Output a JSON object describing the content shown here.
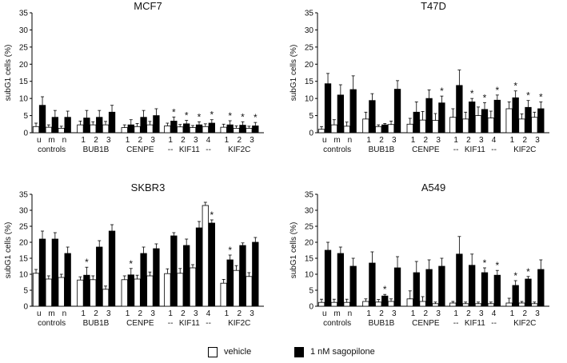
{
  "chart_data": [
    {
      "type": "bar",
      "title": "MCF7",
      "ylabel": "subG1 cells (%)",
      "ylim": [
        0,
        35
      ],
      "yticks": [
        0,
        5,
        10,
        15,
        20,
        25,
        30,
        35
      ],
      "categories": [
        "u",
        "m",
        "n",
        "1",
        "2",
        "3",
        "1",
        "2",
        "3",
        "1",
        "2",
        "3",
        "4",
        "1",
        "2",
        "3"
      ],
      "groups": [
        {
          "label": "controls",
          "start": 0,
          "end": 2
        },
        {
          "label": "BUB1B",
          "start": 3,
          "end": 5
        },
        {
          "label": "CENPE",
          "start": 6,
          "end": 8
        },
        {
          "label": "--",
          "start": 9,
          "end": 9
        },
        {
          "label": "KIF11",
          "start": 10,
          "end": 11
        },
        {
          "label": "--",
          "start": 12,
          "end": 12
        },
        {
          "label": "KIF2C",
          "start": 13,
          "end": 15
        }
      ],
      "series": [
        {
          "name": "vehicle",
          "values": [
            1.8,
            1.6,
            1.3,
            2.3,
            2.3,
            2.3,
            1.5,
            1.8,
            2.3,
            2.0,
            1.7,
            1.5,
            1.8,
            1.6,
            1.3,
            1.3
          ],
          "errors": [
            1.0,
            0.7,
            0.6,
            1.1,
            0.9,
            1.0,
            0.8,
            0.9,
            1.0,
            0.8,
            0.7,
            0.6,
            0.8,
            0.9,
            0.7,
            0.6
          ]
        },
        {
          "name": "1 nM sagopilone",
          "values": [
            8.0,
            4.5,
            4.5,
            4.3,
            4.5,
            6.0,
            2.3,
            4.5,
            5.0,
            3.4,
            2.6,
            2.3,
            2.8,
            2.3,
            2.2,
            2.0
          ],
          "errors": [
            2.5,
            2.0,
            1.8,
            2.2,
            2.0,
            2.0,
            1.5,
            2.0,
            2.0,
            1.2,
            1.0,
            0.9,
            1.0,
            1.2,
            1.0,
            1.0
          ]
        }
      ],
      "significant": [
        9,
        10,
        11,
        12,
        13,
        14,
        15
      ]
    },
    {
      "type": "bar",
      "title": "T47D",
      "ylabel": "subG1 cells (%)",
      "ylim": [
        0,
        35
      ],
      "yticks": [
        0,
        5,
        10,
        15,
        20,
        25,
        30,
        35
      ],
      "categories": [
        "u",
        "m",
        "n",
        "1",
        "2",
        "3",
        "1",
        "2",
        "3",
        "1",
        "2",
        "3",
        "4",
        "1",
        "2",
        "3"
      ],
      "groups": [
        {
          "label": "controls",
          "start": 0,
          "end": 2
        },
        {
          "label": "BUB1B",
          "start": 3,
          "end": 5
        },
        {
          "label": "CENPE",
          "start": 6,
          "end": 8
        },
        {
          "label": "--",
          "start": 9,
          "end": 9
        },
        {
          "label": "KIF11",
          "start": 10,
          "end": 11
        },
        {
          "label": "--",
          "start": 12,
          "end": 12
        },
        {
          "label": "KIF2C",
          "start": 13,
          "end": 15
        }
      ],
      "series": [
        {
          "name": "vehicle",
          "values": [
            1.0,
            2.3,
            1.9,
            4.0,
            1.8,
            2.4,
            2.5,
            3.7,
            3.6,
            4.5,
            4.0,
            5.0,
            4.3,
            7.0,
            4.0,
            4.5
          ],
          "errors": [
            0.8,
            1.5,
            1.2,
            2.0,
            0.5,
            1.0,
            1.7,
            2.5,
            2.0,
            2.5,
            2.0,
            2.5,
            2.0,
            2.0,
            1.5,
            1.5
          ]
        },
        {
          "name": "1 nM sagopilone",
          "values": [
            14.3,
            11.0,
            12.6,
            9.4,
            2.3,
            12.7,
            6.0,
            10.0,
            8.7,
            13.8,
            9.0,
            6.8,
            9.5,
            10.2,
            7.4,
            7.0
          ],
          "errors": [
            3.0,
            3.0,
            4.0,
            2.0,
            0.4,
            2.5,
            3.0,
            2.5,
            2.0,
            4.5,
            1.0,
            2.0,
            1.5,
            2.0,
            2.0,
            2.0
          ]
        }
      ],
      "significant": [
        8,
        10,
        11,
        12,
        13,
        14,
        15
      ]
    },
    {
      "type": "bar",
      "title": "SKBR3",
      "ylabel": "subG1 cells (%)",
      "ylim": [
        0,
        35
      ],
      "yticks": [
        0,
        5,
        10,
        15,
        20,
        25,
        30,
        35
      ],
      "categories": [
        "u",
        "m",
        "n",
        "1",
        "2",
        "3",
        "1",
        "2",
        "3",
        "1",
        "2",
        "3",
        "4",
        "1",
        "2",
        "3"
      ],
      "groups": [
        {
          "label": "controls",
          "start": 0,
          "end": 2
        },
        {
          "label": "BUB1B",
          "start": 3,
          "end": 5
        },
        {
          "label": "CENPE",
          "start": 6,
          "end": 8
        },
        {
          "label": "--",
          "start": 9,
          "end": 9
        },
        {
          "label": "KIF11",
          "start": 10,
          "end": 11
        },
        {
          "label": "--",
          "start": 12,
          "end": 12
        },
        {
          "label": "KIF2C",
          "start": 13,
          "end": 15
        }
      ],
      "series": [
        {
          "name": "vehicle",
          "values": [
            10.3,
            8.5,
            9.0,
            8.2,
            8.3,
            5.3,
            8.3,
            8.5,
            9.5,
            10.2,
            10.3,
            12.0,
            31.5,
            7.2,
            11.2,
            9.3
          ],
          "errors": [
            1.2,
            1.0,
            1.0,
            1.0,
            1.2,
            1.0,
            1.2,
            1.2,
            1.2,
            1.5,
            1.5,
            1.0,
            1.0,
            1.2,
            1.5,
            1.2
          ]
        },
        {
          "name": "1 nM sagopilone",
          "values": [
            21.0,
            21.0,
            16.5,
            9.7,
            18.5,
            23.5,
            9.8,
            16.5,
            18.0,
            22.0,
            19.0,
            24.5,
            26.0,
            14.5,
            19.0,
            20.0
          ],
          "errors": [
            2.5,
            2.0,
            2.0,
            2.5,
            2.0,
            2.0,
            2.0,
            2.0,
            1.5,
            1.0,
            2.0,
            2.0,
            1.0,
            1.5,
            0.8,
            1.5
          ]
        }
      ],
      "significant": [
        3,
        6,
        12,
        13
      ]
    },
    {
      "type": "bar",
      "title": "A549",
      "ylabel": "subG1 cells (%)",
      "ylim": [
        0,
        35
      ],
      "yticks": [
        0,
        5,
        10,
        15,
        20,
        25,
        30,
        35
      ],
      "categories": [
        "u",
        "m",
        "n",
        "1",
        "2",
        "3",
        "1",
        "2",
        "3",
        "1",
        "2",
        "3",
        "4",
        "1",
        "2",
        "3"
      ],
      "groups": [
        {
          "label": "controls",
          "start": 0,
          "end": 2
        },
        {
          "label": "BUB1B",
          "start": 3,
          "end": 5
        },
        {
          "label": "CENPE",
          "start": 6,
          "end": 8
        },
        {
          "label": "--",
          "start": 9,
          "end": 9
        },
        {
          "label": "KIF11",
          "start": 10,
          "end": 11
        },
        {
          "label": "--",
          "start": 12,
          "end": 12
        },
        {
          "label": "KIF2C",
          "start": 13,
          "end": 15
        }
      ],
      "series": [
        {
          "name": "vehicle",
          "values": [
            1.2,
            1.2,
            1.2,
            1.5,
            1.3,
            1.5,
            2.3,
            1.5,
            0.8,
            1.0,
            0.8,
            0.8,
            0.8,
            1.0,
            1.0,
            0.8
          ],
          "errors": [
            1.0,
            1.0,
            1.0,
            0.8,
            0.8,
            0.8,
            2.5,
            1.5,
            0.5,
            0.5,
            0.5,
            0.5,
            0.5,
            1.5,
            0.5,
            0.5
          ]
        },
        {
          "name": "1 nM sagopilone",
          "values": [
            17.5,
            16.5,
            12.5,
            13.5,
            3.2,
            12.0,
            10.5,
            11.5,
            12.5,
            16.3,
            12.8,
            10.5,
            9.7,
            6.5,
            8.5,
            11.5
          ],
          "errors": [
            2.5,
            2.0,
            2.5,
            3.5,
            0.5,
            3.5,
            3.5,
            3.0,
            2.5,
            5.5,
            3.5,
            1.5,
            1.5,
            1.5,
            0.8,
            3.0
          ]
        }
      ],
      "significant": [
        4,
        11,
        12,
        13,
        14
      ]
    }
  ],
  "legend": [
    {
      "label": "vehicle",
      "color": "#ffffff"
    },
    {
      "label": "1 nM sagopilone",
      "color": "#000000"
    }
  ]
}
